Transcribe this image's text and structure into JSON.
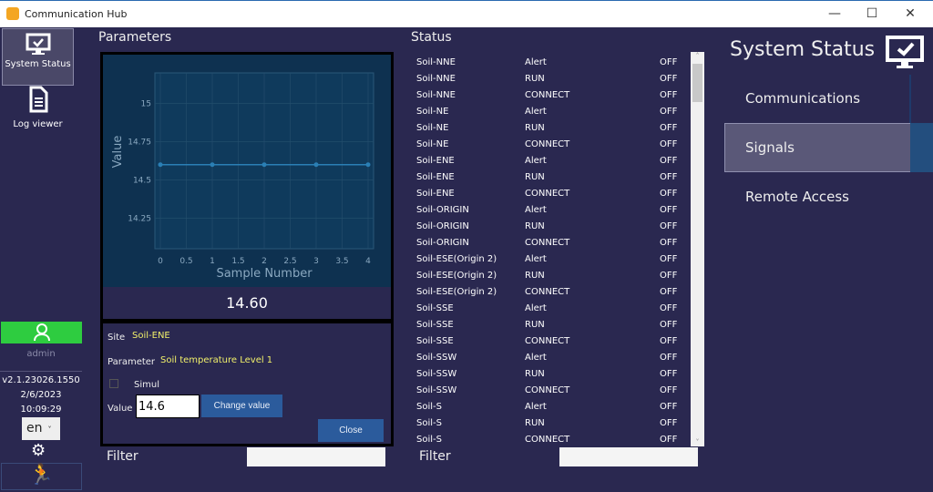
{
  "window": {
    "title": "Communication Hub",
    "minimize": "—",
    "maximize": "☐",
    "close": "✕"
  },
  "sidebar": {
    "items": [
      {
        "label": "System Status",
        "icon": "monitor-check-icon"
      },
      {
        "label": "Log viewer",
        "icon": "document-icon"
      }
    ],
    "user": "admin",
    "version": "v2.1.23026.1550",
    "date": "2/6/2023",
    "time": "10:09:29",
    "language": "en",
    "user_color": "#2ecc40"
  },
  "parameters": {
    "title": "Parameters",
    "current_value": "14.60",
    "site_label": "Site",
    "site": "Soil-ENE",
    "parameter_label": "Parameter",
    "parameter": "Soil temperature Level 1",
    "simul_label": "Simul",
    "simul_checked": false,
    "value_label": "Value",
    "value": "14.6",
    "change_button": "Change value",
    "close_button": "Close",
    "filter_label": "Filter",
    "filter_value": ""
  },
  "chart_data": {
    "type": "line",
    "xlabel": "Sample Number",
    "ylabel": "Value",
    "x": [
      0,
      1,
      2,
      3,
      4
    ],
    "values": [
      14.6,
      14.6,
      14.6,
      14.6,
      14.6
    ],
    "xticks": [
      "0",
      "0.5",
      "1",
      "1.5",
      "2",
      "2.5",
      "3",
      "3.5",
      "4"
    ],
    "yticks": [
      "15",
      "14.75",
      "14.5",
      "14.25"
    ],
    "xlim": [
      0,
      4
    ],
    "ylim": [
      14.05,
      15.2
    ],
    "grid": true,
    "line_color": "#2a7fb5"
  },
  "status": {
    "title": "Status",
    "filter_label": "Filter",
    "filter_value": "",
    "rows": [
      [
        "Soil-NNE",
        "Alert",
        "OFF"
      ],
      [
        "Soil-NNE",
        "RUN",
        "OFF"
      ],
      [
        "Soil-NNE",
        "CONNECT",
        "OFF"
      ],
      [
        "Soil-NE",
        "Alert",
        "OFF"
      ],
      [
        "Soil-NE",
        "RUN",
        "OFF"
      ],
      [
        "Soil-NE",
        "CONNECT",
        "OFF"
      ],
      [
        "Soil-ENE",
        "Alert",
        "OFF"
      ],
      [
        "Soil-ENE",
        "RUN",
        "OFF"
      ],
      [
        "Soil-ENE",
        "CONNECT",
        "OFF"
      ],
      [
        "Soil-ORIGIN",
        "Alert",
        "OFF"
      ],
      [
        "Soil-ORIGIN",
        "RUN",
        "OFF"
      ],
      [
        "Soil-ORIGIN",
        "CONNECT",
        "OFF"
      ],
      [
        "Soil-ESE(Origin 2)",
        "Alert",
        "OFF"
      ],
      [
        "Soil-ESE(Origin 2)",
        "RUN",
        "OFF"
      ],
      [
        "Soil-ESE(Origin 2)",
        "CONNECT",
        "OFF"
      ],
      [
        "Soil-SSE",
        "Alert",
        "OFF"
      ],
      [
        "Soil-SSE",
        "RUN",
        "OFF"
      ],
      [
        "Soil-SSE",
        "CONNECT",
        "OFF"
      ],
      [
        "Soil-SSW",
        "Alert",
        "OFF"
      ],
      [
        "Soil-SSW",
        "RUN",
        "OFF"
      ],
      [
        "Soil-SSW",
        "CONNECT",
        "OFF"
      ],
      [
        "Soil-S",
        "Alert",
        "OFF"
      ],
      [
        "Soil-S",
        "RUN",
        "OFF"
      ],
      [
        "Soil-S",
        "CONNECT",
        "OFF"
      ]
    ]
  },
  "right_panel": {
    "title": "System Status",
    "items": [
      "Communications",
      "Signals",
      "Remote Access"
    ],
    "selected": "Signals"
  }
}
